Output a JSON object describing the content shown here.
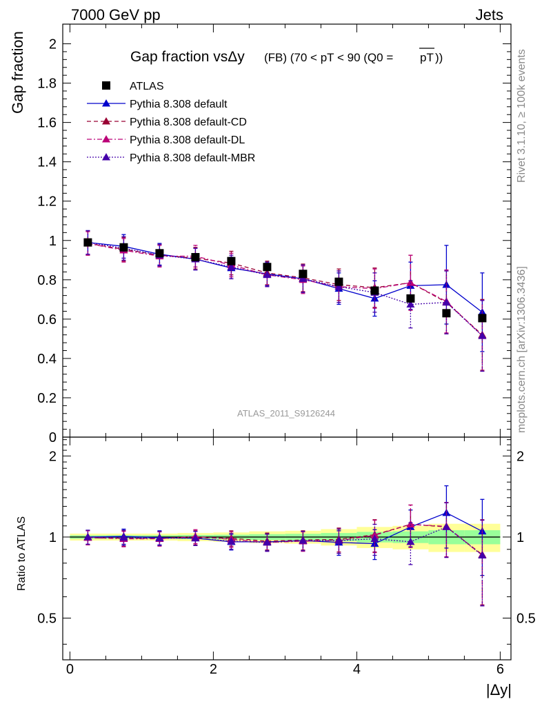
{
  "header": {
    "left": "7000 GeV pp",
    "right": "Jets"
  },
  "side_text": {
    "rivet": "Rivet 3.1.10, ≥ 100k events",
    "mcplots": "mcplots.cern.ch [arXiv:1306.3436]"
  },
  "watermark": "ATLAS_2011_S9126244",
  "title": {
    "main": "Gap fraction vsΔy",
    "sub": "(FB) (70 < pT <  90 (Q0 =",
    "over": "pT",
    "close": "))"
  },
  "colors": {
    "atlas": "#000000",
    "default": "#0000cc",
    "cd": "#990033",
    "dl": "#bb0077",
    "mbr": "#4400aa",
    "band_green": "#99ff99",
    "band_yellow": "#ffff99"
  },
  "chart_data": [
    {
      "type": "line",
      "ylabel": "Gap fraction",
      "ylim": [
        0,
        2.1
      ],
      "xlim": [
        -0.1,
        6.15
      ],
      "yticks": [
        0,
        0.2,
        0.4,
        0.6,
        0.8,
        1,
        1.2,
        1.4,
        1.6,
        1.8,
        2
      ],
      "ytick_labels": [
        "0",
        "0.2",
        "0.4",
        "0.6",
        "0.8",
        "1",
        "1.2",
        "1.4",
        "1.6",
        "1.8",
        "2"
      ],
      "x": [
        0.25,
        0.75,
        1.25,
        1.75,
        2.25,
        2.75,
        3.25,
        3.75,
        4.25,
        4.75,
        5.25,
        5.75
      ],
      "legend_placement": "top-left",
      "series": [
        {
          "name": "ATLAS",
          "marker": "square",
          "color": "#000000",
          "values": [
            0.99,
            0.965,
            0.935,
            0.915,
            0.895,
            0.865,
            0.83,
            0.79,
            0.745,
            0.705,
            0.63,
            0.605
          ]
        },
        {
          "name": "Pythia 8.308 default",
          "marker": "triangle",
          "line": "solid",
          "color": "#0000cc",
          "values": [
            0.99,
            0.97,
            0.93,
            0.905,
            0.86,
            0.83,
            0.805,
            0.755,
            0.705,
            0.77,
            0.775,
            0.635
          ],
          "err": [
            0.06,
            0.06,
            0.055,
            0.055,
            0.055,
            0.06,
            0.07,
            0.08,
            0.09,
            0.12,
            0.2,
            0.2
          ]
        },
        {
          "name": "Pythia 8.308 default-CD",
          "marker": "triangle",
          "line": "dashed",
          "color": "#990033",
          "values": [
            0.985,
            0.955,
            0.925,
            0.91,
            0.885,
            0.835,
            0.81,
            0.775,
            0.76,
            0.785,
            0.685,
            0.52
          ],
          "err": [
            0.06,
            0.06,
            0.055,
            0.055,
            0.06,
            0.06,
            0.07,
            0.08,
            0.1,
            0.14,
            0.16,
            0.18
          ]
        },
        {
          "name": "Pythia 8.308 default-DL",
          "marker": "triangle",
          "line": "dashdot",
          "color": "#bb0077",
          "values": [
            0.985,
            0.95,
            0.92,
            0.92,
            0.875,
            0.825,
            0.8,
            0.765,
            0.755,
            0.785,
            0.69,
            0.515
          ],
          "err": [
            0.06,
            0.06,
            0.055,
            0.055,
            0.06,
            0.06,
            0.07,
            0.08,
            0.1,
            0.14,
            0.16,
            0.18
          ]
        },
        {
          "name": "Pythia 8.308 default-MBR",
          "marker": "triangle",
          "line": "dotted",
          "color": "#4400aa",
          "values": [
            0.99,
            0.96,
            0.925,
            0.905,
            0.865,
            0.825,
            0.805,
            0.765,
            0.735,
            0.675,
            0.685,
            0.515
          ],
          "err": [
            0.06,
            0.06,
            0.055,
            0.055,
            0.06,
            0.06,
            0.07,
            0.08,
            0.1,
            0.12,
            0.16,
            0.18
          ]
        }
      ]
    },
    {
      "type": "line",
      "ylabel": "Ratio to ATLAS",
      "xlabel": "|Δy|",
      "ylim": [
        0.35,
        2.35
      ],
      "xlim": [
        -0.1,
        6.15
      ],
      "yticks": [
        0.5,
        1,
        2
      ],
      "ytick_labels": [
        "0.5",
        "1",
        "2"
      ],
      "xticks": [
        0,
        2,
        4,
        6
      ],
      "xtick_labels": [
        "0",
        "2",
        "4",
        "6"
      ],
      "x": [
        0.25,
        0.75,
        1.25,
        1.75,
        2.25,
        2.75,
        3.25,
        3.75,
        4.25,
        4.75,
        5.25,
        5.75
      ],
      "band_green": [
        0.015,
        0.015,
        0.015,
        0.018,
        0.02,
        0.025,
        0.028,
        0.035,
        0.045,
        0.05,
        0.06,
        0.06
      ],
      "band_yellow": [
        0.03,
        0.03,
        0.03,
        0.035,
        0.04,
        0.05,
        0.055,
        0.07,
        0.09,
        0.1,
        0.12,
        0.12
      ],
      "series": [
        {
          "name": "Pythia 8.308 default",
          "color": "#0000cc",
          "line": "solid",
          "values": [
            1.0,
            1.005,
            0.995,
            0.99,
            0.96,
            0.96,
            0.97,
            0.955,
            0.945,
            1.09,
            1.23,
            1.05
          ],
          "err": [
            0.06,
            0.065,
            0.06,
            0.06,
            0.065,
            0.07,
            0.08,
            0.1,
            0.12,
            0.17,
            0.32,
            0.33
          ]
        },
        {
          "name": "Pythia 8.308 default-CD",
          "color": "#990033",
          "line": "dashed",
          "values": [
            0.995,
            0.99,
            0.99,
            0.995,
            0.99,
            0.965,
            0.975,
            0.98,
            1.02,
            1.115,
            1.09,
            0.86
          ],
          "err": [
            0.06,
            0.065,
            0.06,
            0.06,
            0.065,
            0.07,
            0.08,
            0.1,
            0.14,
            0.2,
            0.25,
            0.3
          ]
        },
        {
          "name": "Pythia 8.308 default-DL",
          "color": "#bb0077",
          "line": "dashdot",
          "values": [
            0.995,
            0.985,
            0.985,
            1.005,
            0.98,
            0.955,
            0.965,
            0.97,
            1.015,
            1.115,
            1.095,
            0.855
          ],
          "err": [
            0.06,
            0.065,
            0.06,
            0.06,
            0.065,
            0.07,
            0.08,
            0.1,
            0.14,
            0.2,
            0.25,
            0.3
          ]
        },
        {
          "name": "Pythia 8.308 default-MBR",
          "color": "#4400aa",
          "line": "dotted",
          "values": [
            1.0,
            0.995,
            0.99,
            0.99,
            0.965,
            0.955,
            0.97,
            0.97,
            0.985,
            0.96,
            1.09,
            0.855
          ],
          "err": [
            0.06,
            0.065,
            0.06,
            0.06,
            0.065,
            0.07,
            0.08,
            0.1,
            0.13,
            0.17,
            0.25,
            0.3
          ]
        }
      ]
    }
  ]
}
